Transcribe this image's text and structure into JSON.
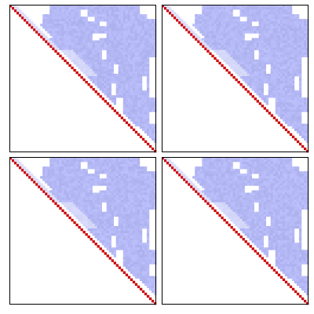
{
  "figure": {
    "background_color": "#ffffff",
    "frame_color": "#000000"
  },
  "chart_data": [
    {
      "type": "heatmap",
      "layout": "upper-triangular",
      "position": "top-left",
      "title": "",
      "xlabel": "",
      "ylabel": "",
      "ticks": false,
      "grid": false,
      "matrix_size": 62,
      "colors": {
        "diagonal": "#cc0000",
        "fill": "#b4b8f4",
        "empty": "#ffffff"
      }
    },
    {
      "type": "heatmap",
      "layout": "upper-triangular",
      "position": "top-right",
      "title": "",
      "xlabel": "",
      "ylabel": "",
      "ticks": false,
      "grid": false,
      "matrix_size": 62,
      "colors": {
        "diagonal": "#cc0000",
        "fill": "#b4b8f4",
        "empty": "#ffffff"
      }
    },
    {
      "type": "heatmap",
      "layout": "upper-triangular",
      "position": "bottom-left",
      "title": "",
      "xlabel": "",
      "ylabel": "",
      "ticks": false,
      "grid": false,
      "matrix_size": 62,
      "colors": {
        "diagonal": "#cc0000",
        "fill": "#b4b8f4",
        "empty": "#ffffff"
      }
    },
    {
      "type": "heatmap",
      "layout": "upper-triangular",
      "position": "bottom-right",
      "title": "",
      "xlabel": "",
      "ylabel": "",
      "ticks": false,
      "grid": false,
      "matrix_size": 62,
      "colors": {
        "diagonal": "#cc0000",
        "fill": "#b4b8f4",
        "empty": "#ffffff"
      }
    }
  ]
}
